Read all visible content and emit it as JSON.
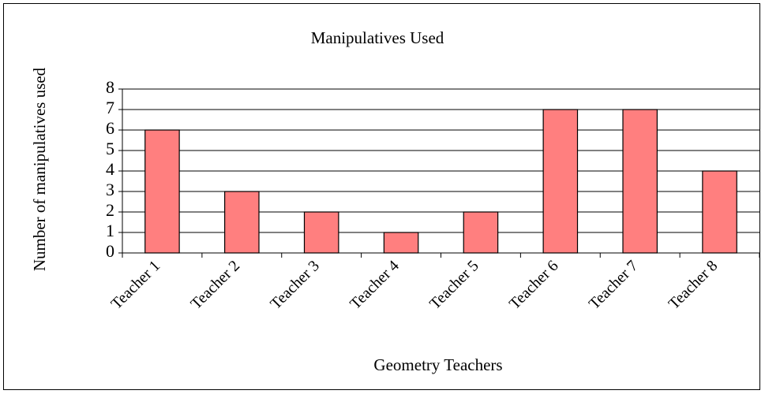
{
  "chart_data": {
    "type": "bar",
    "title": "Manipulatives Used",
    "x_label": "Geometry Teachers",
    "y_label": "Number of manipulatives used",
    "categories": [
      "Teacher 1",
      "Teacher 2",
      "Teacher 3",
      "Teacher 4",
      "Teacher 5",
      "Teacher 6",
      "Teacher 7",
      "Teacher 8"
    ],
    "values": [
      6,
      3,
      2,
      1,
      2,
      7,
      7,
      4
    ],
    "color": "#ff7f7f",
    "ylim": [
      0,
      8
    ],
    "yticks": [
      0,
      1,
      2,
      3,
      4,
      5,
      6,
      7,
      8
    ],
    "grid": true
  }
}
